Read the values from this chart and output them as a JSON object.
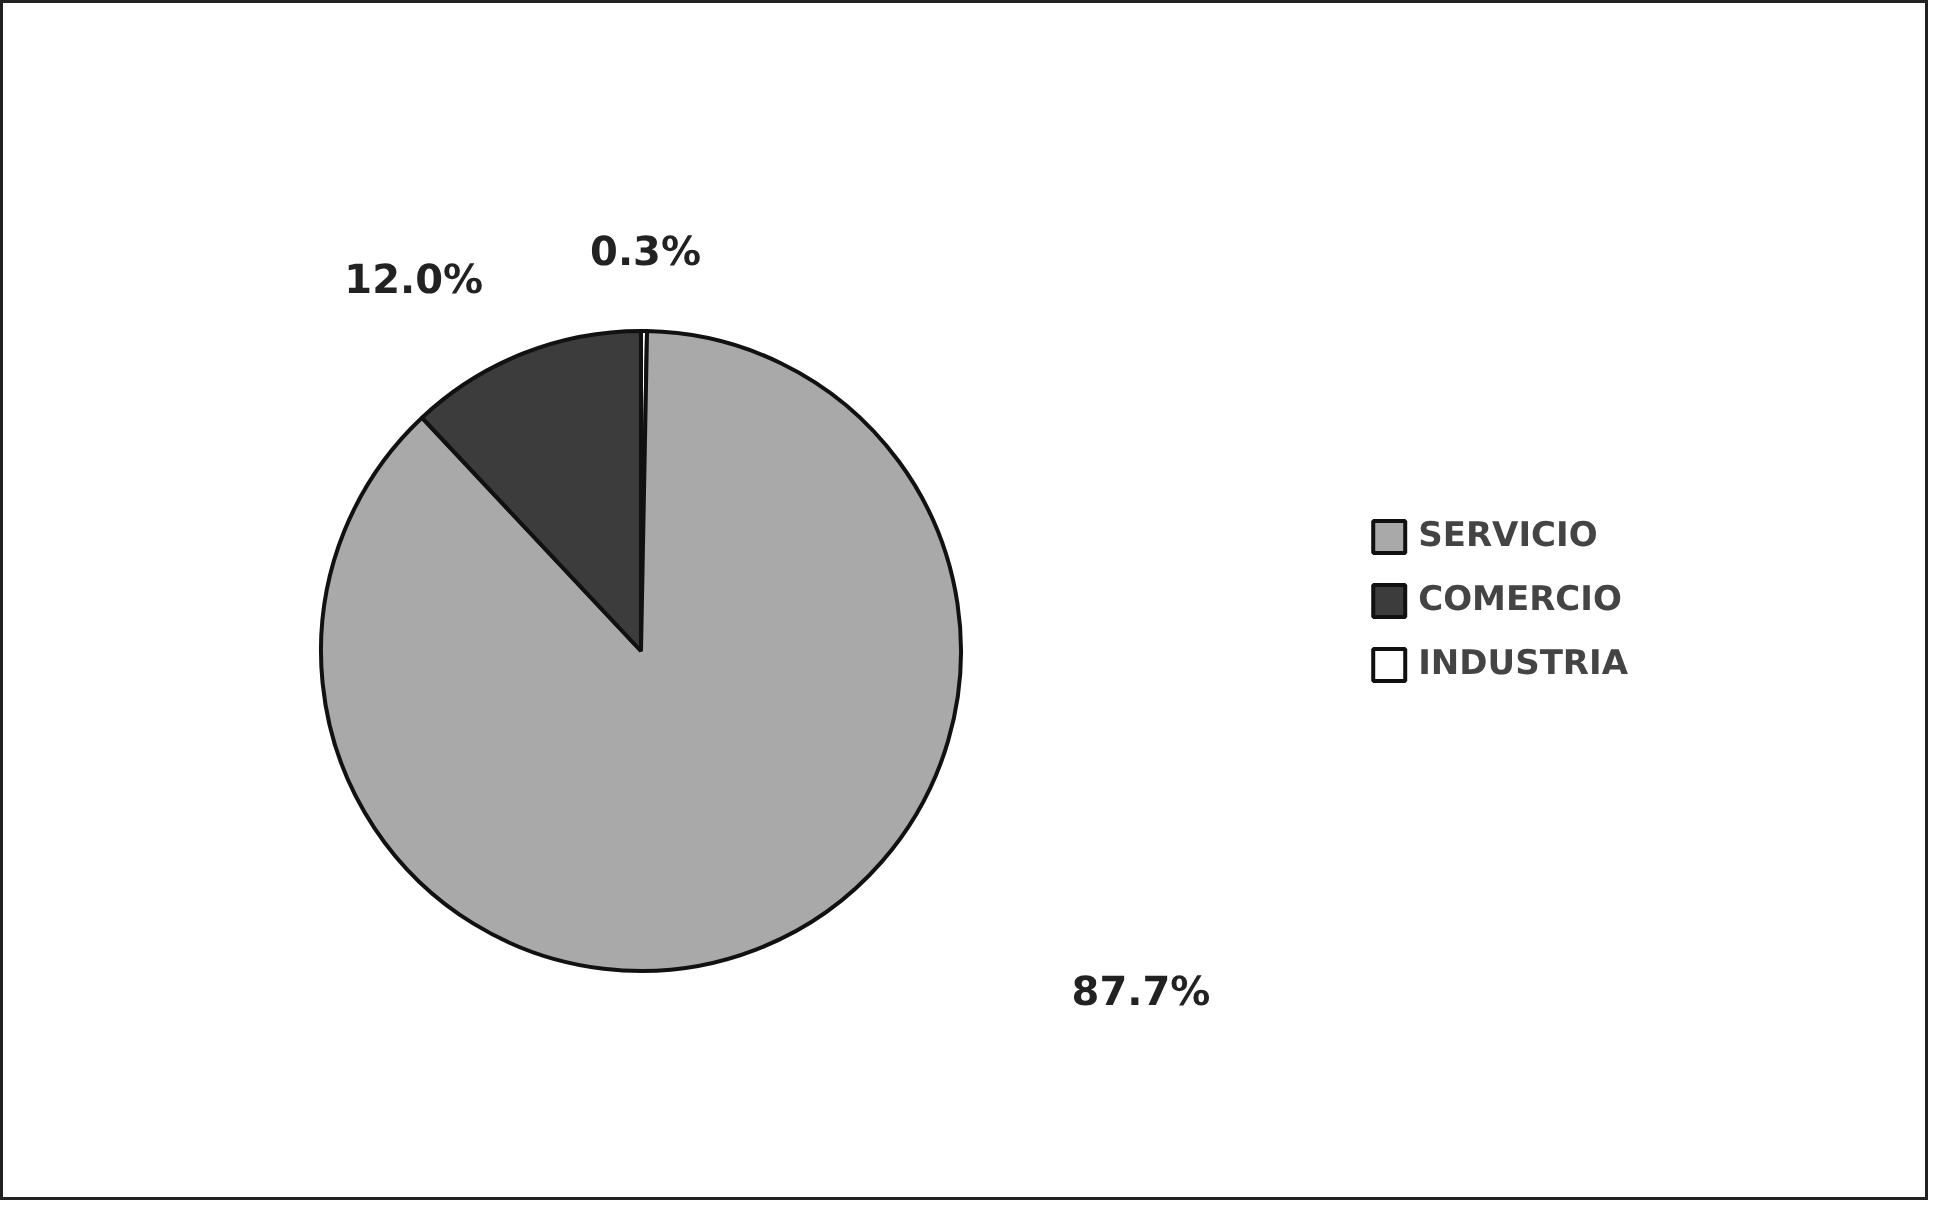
{
  "chart_data": {
    "type": "pie",
    "categories": [
      "SERVICIO",
      "COMERCIO",
      "INDUSTRIA"
    ],
    "values": [
      87.7,
      12.0,
      0.3
    ],
    "colors": [
      "#a9a9a9",
      "#3c3c3c",
      "#ffffff"
    ],
    "value_labels": [
      "87.7%",
      "12.0%",
      "0.3%"
    ],
    "legend": "right"
  }
}
